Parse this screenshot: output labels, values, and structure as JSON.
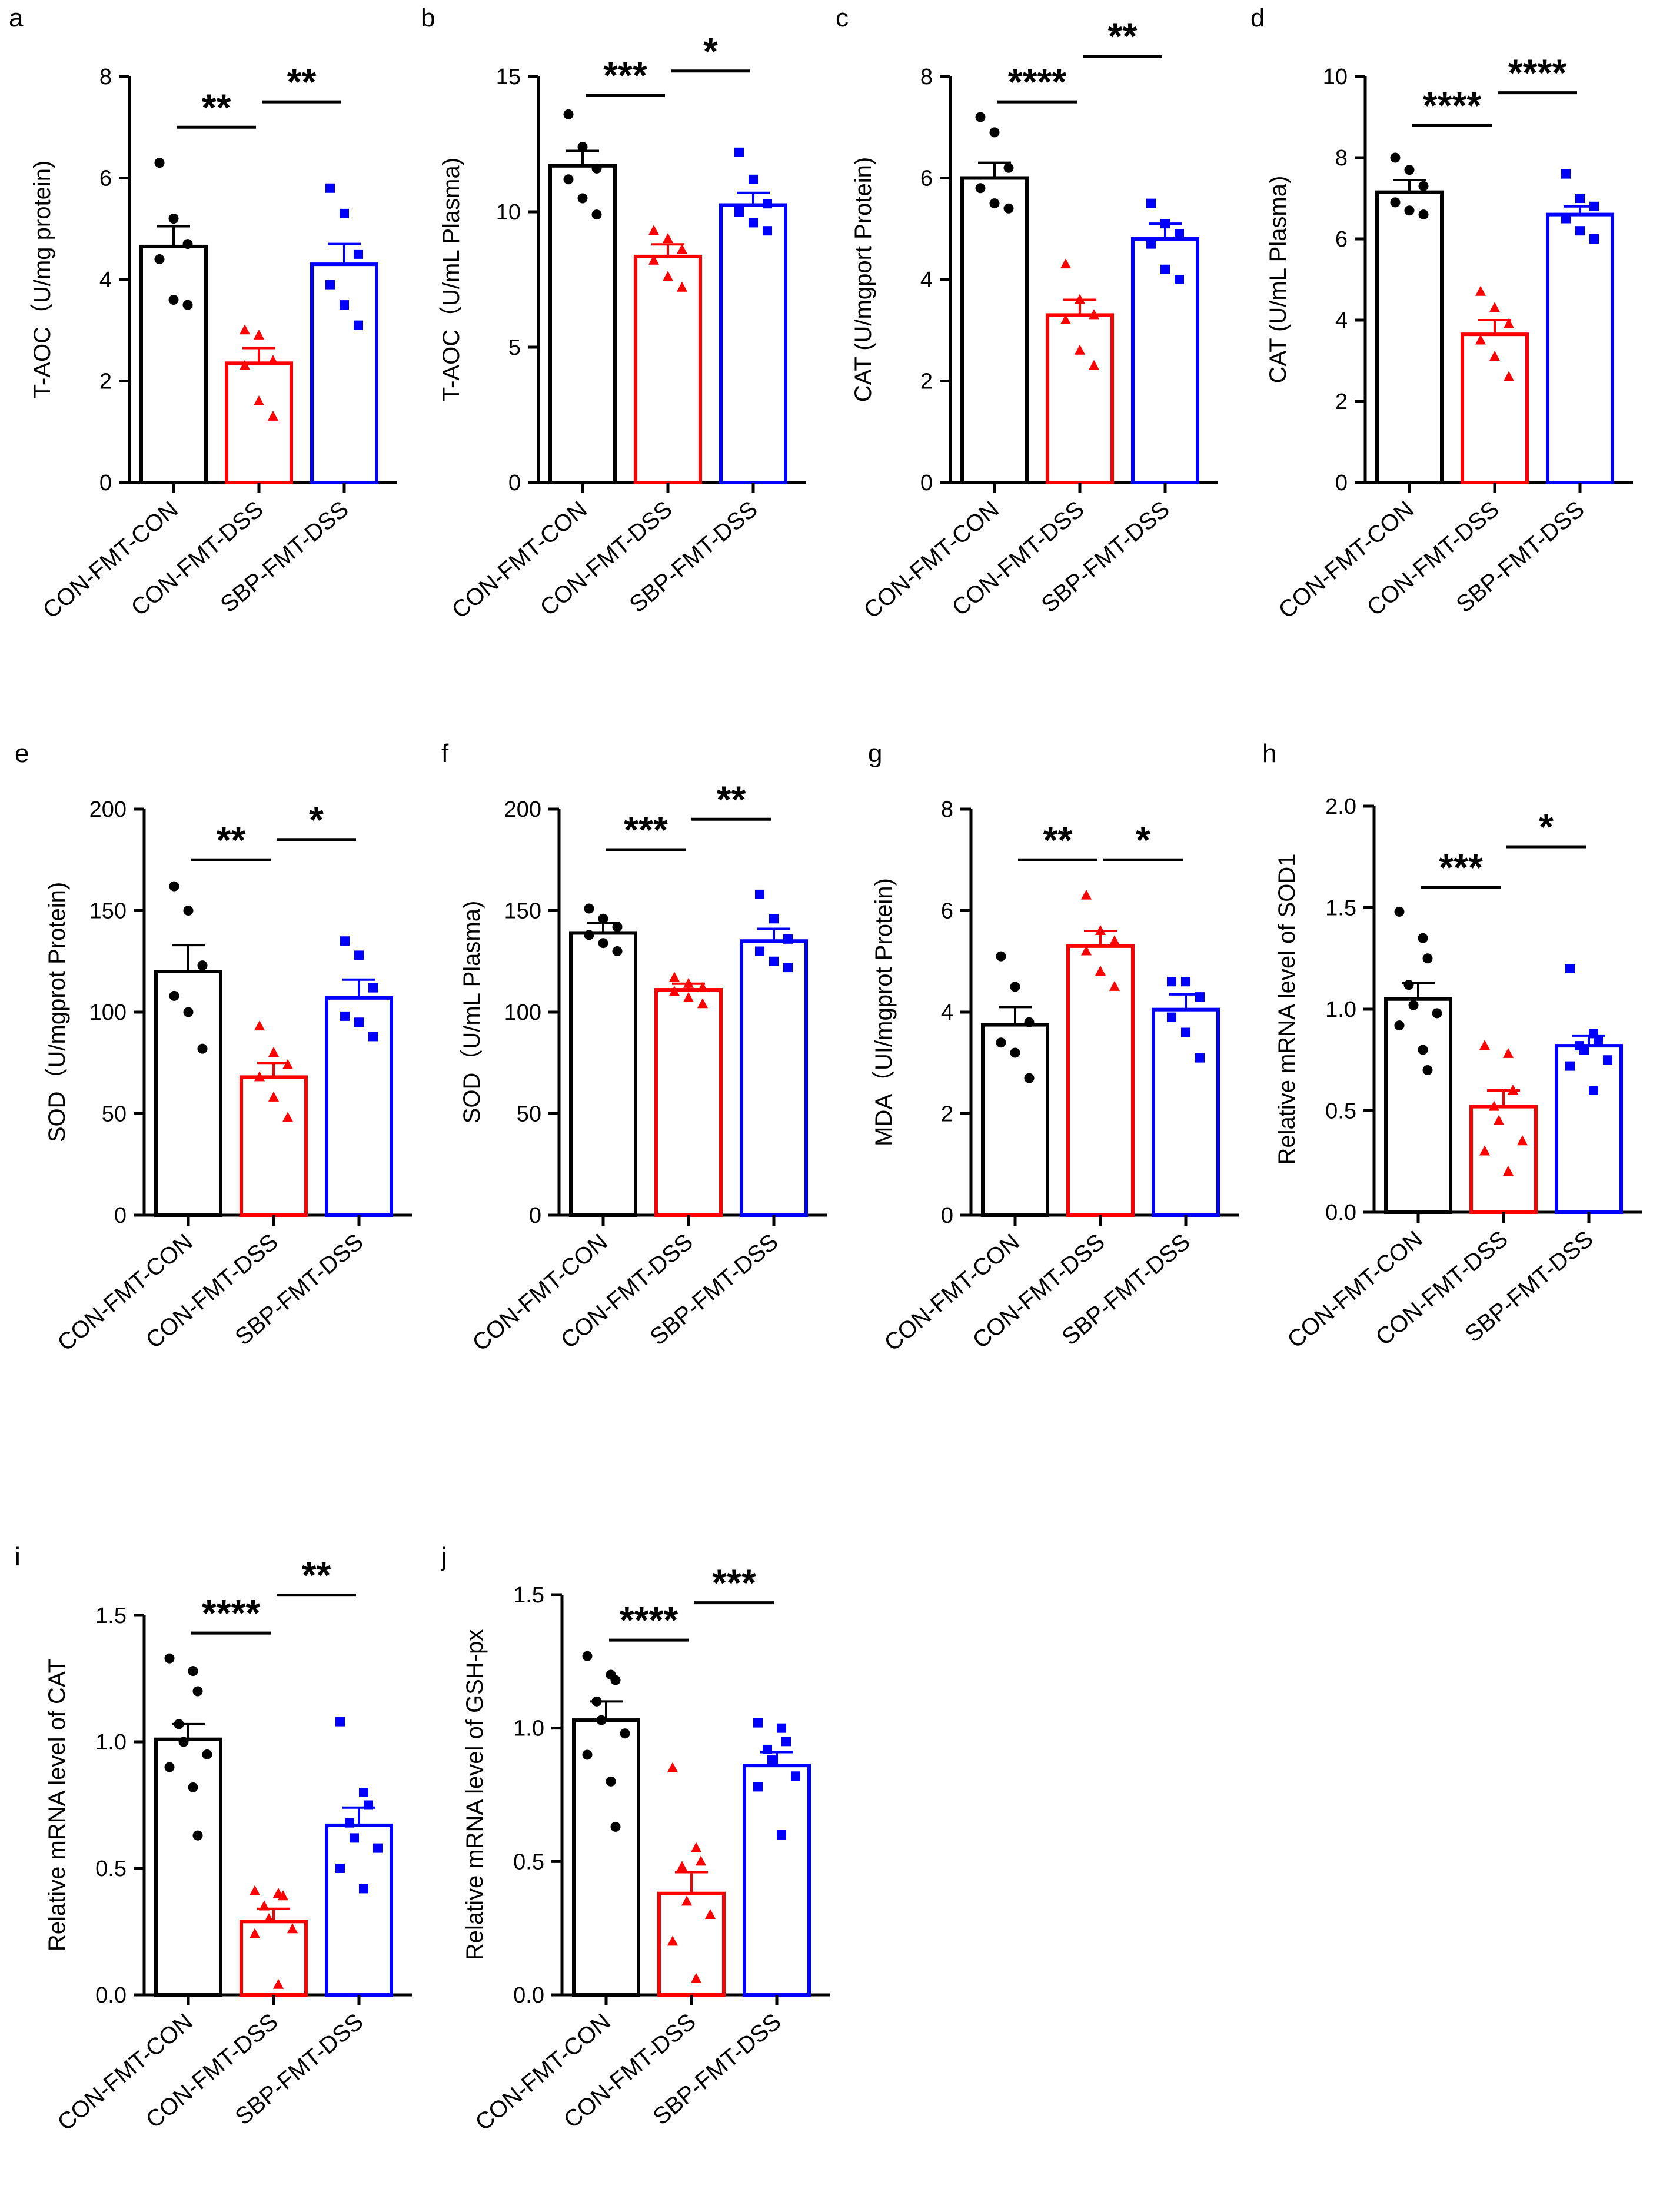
{
  "colors": {
    "con": "#000000",
    "dss": "#ff0000",
    "sbp": "#0000ff"
  },
  "categories": [
    "CON-FMT-CON",
    "CON-FMT-DSS",
    "SBP-FMT-DSS"
  ],
  "chart_data": [
    {
      "panel": "a",
      "type": "bar",
      "ylabel": "T-AOC（U/mg protein)",
      "ylim": [
        0,
        8
      ],
      "yticks": [
        "0",
        "2",
        "4",
        "6",
        "8"
      ],
      "categories": [
        "CON-FMT-CON",
        "CON-FMT-DSS",
        "SBP-FMT-DSS"
      ],
      "series": [
        {
          "name": "CON-FMT-CON",
          "mean": 4.65,
          "sem": 0.4,
          "points": [
            6.3,
            5.2,
            4.7,
            4.4,
            3.6,
            3.5
          ]
        },
        {
          "name": "CON-FMT-DSS",
          "mean": 2.35,
          "sem": 0.3,
          "points": [
            3.0,
            2.9,
            2.4,
            2.3,
            1.6,
            1.3
          ]
        },
        {
          "name": "SBP-FMT-DSS",
          "mean": 4.3,
          "sem": 0.4,
          "points": [
            5.8,
            5.3,
            4.5,
            3.9,
            3.5,
            3.1
          ]
        }
      ],
      "significance": [
        {
          "from": 0,
          "to": 1,
          "y": 7.0,
          "label": "**"
        },
        {
          "from": 1,
          "to": 2,
          "y": 7.5,
          "label": "**"
        }
      ]
    },
    {
      "panel": "b",
      "type": "bar",
      "ylabel": "T-AOC（U/mL Plasma)",
      "ylim": [
        0,
        15
      ],
      "yticks": [
        "0",
        "5",
        "10",
        "15"
      ],
      "categories": [
        "CON-FMT-CON",
        "CON-FMT-DSS",
        "SBP-FMT-DSS"
      ],
      "series": [
        {
          "name": "CON-FMT-CON",
          "mean": 11.7,
          "sem": 0.55,
          "points": [
            13.6,
            12.4,
            11.6,
            11.2,
            10.5,
            9.9
          ]
        },
        {
          "name": "CON-FMT-DSS",
          "mean": 8.35,
          "sem": 0.45,
          "points": [
            9.3,
            9.0,
            8.6,
            8.2,
            7.6,
            7.2
          ]
        },
        {
          "name": "SBP-FMT-DSS",
          "mean": 10.25,
          "sem": 0.45,
          "points": [
            12.2,
            11.2,
            10.3,
            10.0,
            9.6,
            9.3
          ]
        }
      ],
      "significance": [
        {
          "from": 0,
          "to": 1,
          "y": 14.3,
          "label": "***"
        },
        {
          "from": 1,
          "to": 2,
          "y": 15.2,
          "label": "*"
        }
      ]
    },
    {
      "panel": "c",
      "type": "bar",
      "ylabel": "CAT (U/mgport Protein)",
      "ylim": [
        0,
        8
      ],
      "yticks": [
        "0",
        "2",
        "4",
        "6",
        "8"
      ],
      "categories": [
        "CON-FMT-CON",
        "CON-FMT-DSS",
        "SBP-FMT-DSS"
      ],
      "series": [
        {
          "name": "CON-FMT-CON",
          "mean": 6.0,
          "sem": 0.3,
          "points": [
            7.2,
            6.9,
            6.2,
            5.8,
            5.5,
            5.4
          ]
        },
        {
          "name": "CON-FMT-DSS",
          "mean": 3.3,
          "sem": 0.3,
          "points": [
            4.3,
            3.6,
            3.3,
            3.2,
            2.6,
            2.3
          ]
        },
        {
          "name": "SBP-FMT-DSS",
          "mean": 4.8,
          "sem": 0.3,
          "points": [
            5.5,
            5.1,
            4.9,
            4.7,
            4.2,
            4.0
          ]
        }
      ],
      "significance": [
        {
          "from": 0,
          "to": 1,
          "y": 7.5,
          "label": "****"
        },
        {
          "from": 1,
          "to": 2,
          "y": 8.4,
          "label": "**"
        }
      ]
    },
    {
      "panel": "d",
      "type": "bar",
      "ylabel": "CAT (U/mL Plasma)",
      "ylim": [
        0,
        10
      ],
      "yticks": [
        "0",
        "2",
        "4",
        "6",
        "8",
        "10"
      ],
      "categories": [
        "CON-FMT-CON",
        "CON-FMT-DSS",
        "SBP-FMT-DSS"
      ],
      "series": [
        {
          "name": "CON-FMT-CON",
          "mean": 7.15,
          "sem": 0.3,
          "points": [
            8.0,
            7.7,
            7.3,
            6.9,
            6.7,
            6.6
          ]
        },
        {
          "name": "CON-FMT-DSS",
          "mean": 3.65,
          "sem": 0.35,
          "points": [
            4.7,
            4.3,
            3.9,
            3.5,
            3.1,
            2.6
          ]
        },
        {
          "name": "SBP-FMT-DSS",
          "mean": 6.6,
          "sem": 0.2,
          "points": [
            7.6,
            7.0,
            6.8,
            6.5,
            6.2,
            6.0
          ]
        }
      ],
      "significance": [
        {
          "from": 0,
          "to": 1,
          "y": 8.8,
          "label": "****"
        },
        {
          "from": 1,
          "to": 2,
          "y": 9.6,
          "label": "****"
        }
      ]
    },
    {
      "panel": "e",
      "type": "bar",
      "ylabel": "SOD（U/mgprot Protein)",
      "ylim": [
        0,
        200
      ],
      "yticks": [
        "0",
        "50",
        "100",
        "150",
        "200"
      ],
      "categories": [
        "CON-FMT-CON",
        "CON-FMT-DSS",
        "SBP-FMT-DSS"
      ],
      "series": [
        {
          "name": "CON-FMT-CON",
          "mean": 120,
          "sem": 13,
          "points": [
            162,
            150,
            123,
            108,
            100,
            82
          ]
        },
        {
          "name": "CON-FMT-DSS",
          "mean": 68,
          "sem": 7,
          "points": [
            93,
            80,
            74,
            68,
            58,
            48
          ]
        },
        {
          "name": "SBP-FMT-DSS",
          "mean": 107,
          "sem": 9,
          "points": [
            135,
            128,
            112,
            98,
            95,
            88
          ]
        }
      ],
      "significance": [
        {
          "from": 0,
          "to": 1,
          "y": 175,
          "label": "**"
        },
        {
          "from": 1,
          "to": 2,
          "y": 185,
          "label": "*"
        }
      ]
    },
    {
      "panel": "f",
      "type": "bar",
      "ylabel": "SOD（U/mL Plasma)",
      "ylim": [
        0,
        200
      ],
      "yticks": [
        "0",
        "50",
        "100",
        "150",
        "200"
      ],
      "categories": [
        "CON-FMT-CON",
        "CON-FMT-DSS",
        "SBP-FMT-DSS"
      ],
      "series": [
        {
          "name": "CON-FMT-CON",
          "mean": 139,
          "sem": 5,
          "points": [
            151,
            146,
            142,
            138,
            134,
            130
          ]
        },
        {
          "name": "CON-FMT-DSS",
          "mean": 111,
          "sem": 3,
          "points": [
            117,
            114,
            112,
            110,
            107,
            104
          ]
        },
        {
          "name": "SBP-FMT-DSS",
          "mean": 135,
          "sem": 6,
          "points": [
            158,
            146,
            136,
            130,
            125,
            122
          ]
        }
      ],
      "significance": [
        {
          "from": 0,
          "to": 1,
          "y": 180,
          "label": "***"
        },
        {
          "from": 1,
          "to": 2,
          "y": 195,
          "label": "**"
        }
      ]
    },
    {
      "panel": "g",
      "type": "bar",
      "ylabel": "MDA（UI/mgprot Protein)",
      "ylim": [
        0,
        8
      ],
      "yticks": [
        "0",
        "2",
        "4",
        "6",
        "8"
      ],
      "categories": [
        "CON-FMT-CON",
        "CON-FMT-DSS",
        "SBP-FMT-DSS"
      ],
      "series": [
        {
          "name": "CON-FMT-CON",
          "mean": 3.75,
          "sem": 0.35,
          "points": [
            5.1,
            4.5,
            3.8,
            3.4,
            3.2,
            2.7
          ]
        },
        {
          "name": "CON-FMT-DSS",
          "mean": 5.3,
          "sem": 0.3,
          "points": [
            6.3,
            5.6,
            5.4,
            5.2,
            4.8,
            4.5
          ]
        },
        {
          "name": "SBP-FMT-DSS",
          "mean": 4.05,
          "sem": 0.3,
          "points": [
            4.6,
            4.6,
            4.3,
            3.9,
            3.6,
            3.1
          ]
        }
      ],
      "significance": [
        {
          "from": 0,
          "to": 1,
          "y": 7.0,
          "label": "**"
        },
        {
          "from": 1,
          "to": 2,
          "y": 7.0,
          "label": "*"
        }
      ]
    },
    {
      "panel": "h",
      "type": "bar",
      "ylabel": "Relative mRNA level of SOD1",
      "ylim": [
        0,
        2.0
      ],
      "yticks": [
        "0.0",
        "0.5",
        "1.0",
        "1.5",
        "2.0"
      ],
      "categories": [
        "CON-FMT-CON",
        "CON-FMT-DSS",
        "SBP-FMT-DSS"
      ],
      "series": [
        {
          "name": "CON-FMT-CON",
          "mean": 1.05,
          "sem": 0.08,
          "points": [
            1.48,
            1.35,
            1.25,
            1.12,
            1.02,
            0.98,
            0.92,
            0.8,
            0.7
          ]
        },
        {
          "name": "CON-FMT-DSS",
          "mean": 0.52,
          "sem": 0.08,
          "points": [
            0.82,
            0.78,
            0.6,
            0.52,
            0.45,
            0.35,
            0.3,
            0.2
          ]
        },
        {
          "name": "SBP-FMT-DSS",
          "mean": 0.82,
          "sem": 0.05,
          "points": [
            1.2,
            0.88,
            0.85,
            0.82,
            0.8,
            0.75,
            0.72,
            0.6
          ]
        }
      ],
      "significance": [
        {
          "from": 0,
          "to": 1,
          "y": 1.6,
          "label": "***"
        },
        {
          "from": 1,
          "to": 2,
          "y": 1.8,
          "label": "*"
        }
      ]
    },
    {
      "panel": "i",
      "type": "bar",
      "ylabel": "Relative mRNA level of CAT",
      "ylim": [
        0,
        1.5
      ],
      "yticks": [
        "0.0",
        "0.5",
        "1.0",
        "1.5"
      ],
      "categories": [
        "CON-FMT-CON",
        "CON-FMT-DSS",
        "SBP-FMT-DSS"
      ],
      "series": [
        {
          "name": "CON-FMT-CON",
          "mean": 1.01,
          "sem": 0.06,
          "points": [
            1.33,
            1.28,
            1.2,
            1.07,
            1.0,
            0.95,
            0.9,
            0.82,
            0.63
          ]
        },
        {
          "name": "CON-FMT-DSS",
          "mean": 0.29,
          "sem": 0.05,
          "points": [
            0.41,
            0.4,
            0.39,
            0.35,
            0.3,
            0.26,
            0.24,
            0.04
          ]
        },
        {
          "name": "SBP-FMT-DSS",
          "mean": 0.67,
          "sem": 0.07,
          "points": [
            1.08,
            0.8,
            0.75,
            0.68,
            0.62,
            0.58,
            0.5,
            0.42
          ]
        }
      ],
      "significance": [
        {
          "from": 0,
          "to": 1,
          "y": 1.43,
          "label": "****"
        },
        {
          "from": 1,
          "to": 2,
          "y": 1.58,
          "label": "**"
        }
      ]
    },
    {
      "panel": "j",
      "type": "bar",
      "ylabel": "Relative mRNA level of GSH-px",
      "ylim": [
        0,
        1.5
      ],
      "yticks": [
        "0.0",
        "0.5",
        "1.0",
        "1.5"
      ],
      "categories": [
        "CON-FMT-CON",
        "CON-FMT-DSS",
        "SBP-FMT-DSS"
      ],
      "series": [
        {
          "name": "CON-FMT-CON",
          "mean": 1.03,
          "sem": 0.07,
          "points": [
            1.27,
            1.2,
            1.18,
            1.1,
            1.03,
            0.98,
            0.9,
            0.8,
            0.63
          ]
        },
        {
          "name": "CON-FMT-DSS",
          "mean": 0.38,
          "sem": 0.08,
          "points": [
            0.85,
            0.55,
            0.5,
            0.48,
            0.35,
            0.3,
            0.2,
            0.06
          ]
        },
        {
          "name": "SBP-FMT-DSS",
          "mean": 0.86,
          "sem": 0.05,
          "points": [
            1.02,
            1.0,
            0.95,
            0.92,
            0.88,
            0.82,
            0.78,
            0.6
          ]
        }
      ],
      "significance": [
        {
          "from": 0,
          "to": 1,
          "y": 1.33,
          "label": "****"
        },
        {
          "from": 1,
          "to": 2,
          "y": 1.47,
          "label": "***"
        }
      ]
    }
  ]
}
